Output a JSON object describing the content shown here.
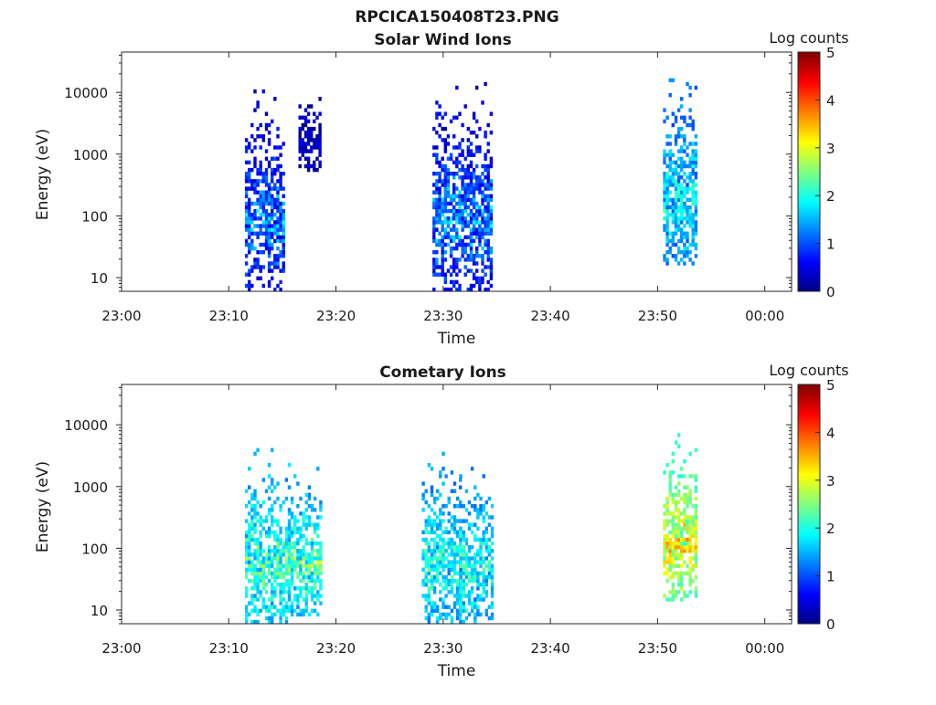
{
  "figure": {
    "title": "RPCICA150408T23.PNG"
  },
  "colors": {
    "colormap_stops": [
      "#00007f",
      "#0000ff",
      "#007fff",
      "#00ffff",
      "#7fff7f",
      "#ffff00",
      "#ff7f00",
      "#ff0000",
      "#7f0000"
    ],
    "axes": "#262626"
  },
  "chart_data": [
    {
      "type": "heatmap",
      "title": "Solar Wind Ions",
      "xlabel": "Time",
      "ylabel": "Energy (eV)",
      "y_scale": "log",
      "ylim": [
        6,
        45000
      ],
      "xlim": [
        "23:00",
        "00:02:30"
      ],
      "x_ticks": [
        "23:00",
        "23:10",
        "23:20",
        "23:30",
        "23:40",
        "23:50",
        "00:00"
      ],
      "y_ticks": [
        "10",
        "100",
        "1000",
        "10000"
      ],
      "colorbar": {
        "label": "Log counts",
        "range": [
          0,
          5
        ],
        "ticks": [
          "0",
          "1",
          "2",
          "3",
          "4",
          "5"
        ]
      },
      "bursts": [
        {
          "start": "23:11:30",
          "end": "23:15:00",
          "energy_min": 6,
          "energy_max": 11000,
          "peak_log_counts": 2.0,
          "mean_log_counts": 0.5
        },
        {
          "start": "23:16:30",
          "end": "23:18:30",
          "energy_min": 500,
          "energy_max": 11000,
          "peak_log_counts": 0.5,
          "mean_log_counts": 0.2
        },
        {
          "start": "23:29:00",
          "end": "23:34:30",
          "energy_min": 6,
          "energy_max": 14000,
          "peak_log_counts": 2.0,
          "mean_log_counts": 0.5
        },
        {
          "start": "23:50:30",
          "end": "23:53:30",
          "energy_min": 15,
          "energy_max": 18000,
          "peak_log_counts": 2.4,
          "mean_log_counts": 1.2
        }
      ]
    },
    {
      "type": "heatmap",
      "title": "Cometary Ions",
      "xlabel": "Time",
      "ylabel": "Energy (eV)",
      "y_scale": "log",
      "ylim": [
        6,
        45000
      ],
      "xlim": [
        "23:00",
        "00:02:30"
      ],
      "x_ticks": [
        "23:00",
        "23:10",
        "23:20",
        "23:30",
        "23:40",
        "23:50",
        "00:00"
      ],
      "y_ticks": [
        "10",
        "100",
        "1000",
        "10000"
      ],
      "colorbar": {
        "label": "Log counts",
        "range": [
          0,
          5
        ],
        "ticks": [
          "0",
          "1",
          "2",
          "3",
          "4",
          "5"
        ]
      },
      "bursts": [
        {
          "start": "23:11:30",
          "end": "23:15:30",
          "energy_min": 6,
          "energy_max": 4000,
          "peak_log_counts": 2.8,
          "mean_log_counts": 1.5
        },
        {
          "start": "23:15:30",
          "end": "23:18:30",
          "energy_min": 8,
          "energy_max": 2500,
          "peak_log_counts": 3.0,
          "mean_log_counts": 1.5
        },
        {
          "start": "23:28:00",
          "end": "23:31:30",
          "energy_min": 6,
          "energy_max": 5000,
          "peak_log_counts": 2.5,
          "mean_log_counts": 1.4
        },
        {
          "start": "23:31:30",
          "end": "23:34:30",
          "energy_min": 6,
          "energy_max": 2000,
          "peak_log_counts": 2.5,
          "mean_log_counts": 1.4
        },
        {
          "start": "23:50:30",
          "end": "23:53:30",
          "energy_min": 13,
          "energy_max": 7000,
          "peak_log_counts": 3.7,
          "mean_log_counts": 2.3
        }
      ]
    }
  ]
}
